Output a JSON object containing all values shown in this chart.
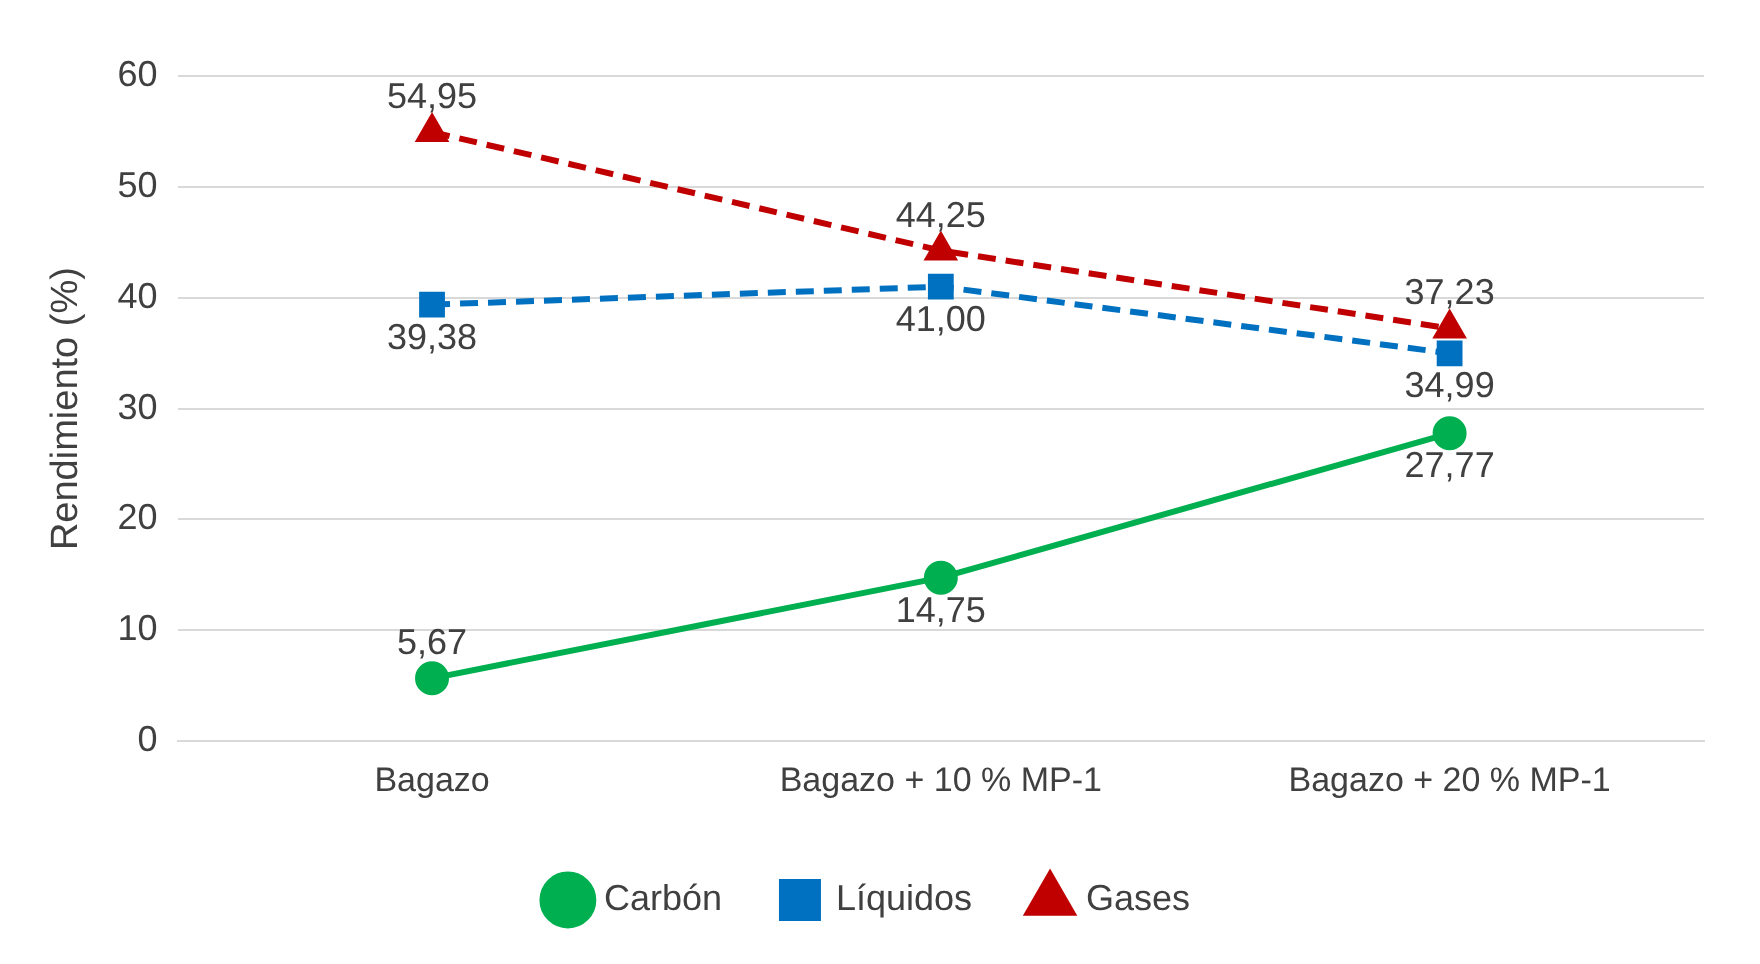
{
  "chart_data": {
    "type": "line",
    "ylabel": "Rendimiento (%)",
    "categories": [
      "Bagazo",
      "Bagazo + 10 % MP-1",
      "Bagazo + 20 % MP-1"
    ],
    "series": [
      {
        "name": "Carbón",
        "color": "#00b050",
        "values": [
          5.67,
          14.75,
          27.77
        ],
        "value_labels": [
          "5,67",
          "14,75",
          "27,77"
        ],
        "marker": "circle",
        "line_style": "solid"
      },
      {
        "name": "Líquidos",
        "color": "#0070c0",
        "values": [
          39.38,
          41.0,
          34.99
        ],
        "value_labels": [
          "39,38",
          "41,00",
          "34,99"
        ],
        "marker": "square",
        "line_style": "dashed"
      },
      {
        "name": "Gases",
        "color": "#c00000",
        "values": [
          54.95,
          44.25,
          37.23
        ],
        "value_labels": [
          "54,95",
          "44,25",
          "37,23"
        ],
        "marker": "triangle",
        "line_style": "dashed"
      }
    ],
    "ylim": [
      0,
      60
    ],
    "yticks": [
      0,
      10,
      20,
      30,
      40,
      50,
      60
    ],
    "grid": "y",
    "legend": "bottom"
  }
}
